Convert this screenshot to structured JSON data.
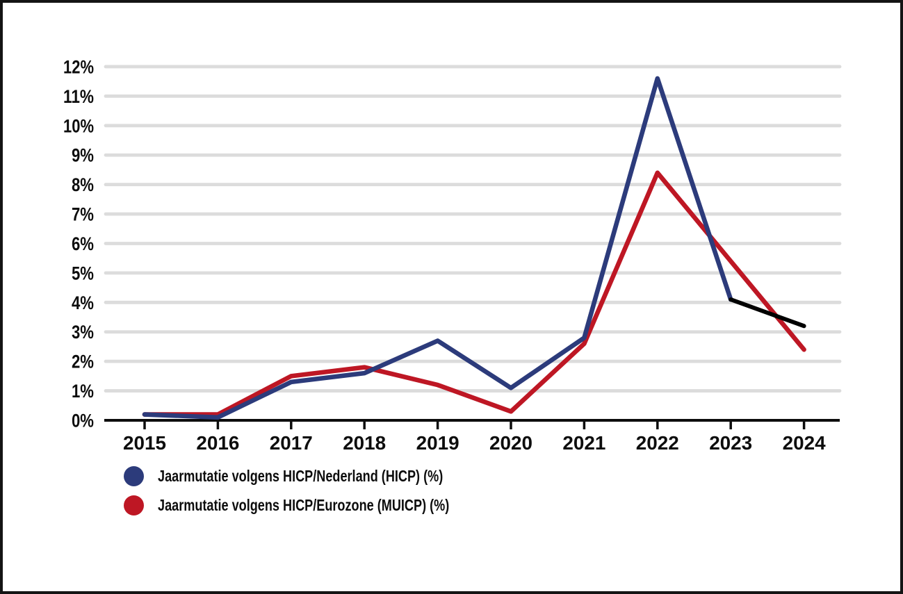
{
  "frame": {
    "background": "#ffffff",
    "border_color": "#141414"
  },
  "chart_data": {
    "type": "line",
    "title": "",
    "xlabel": "",
    "ylabel": "",
    "x": [
      "2015",
      "2016",
      "2017",
      "2018",
      "2019",
      "2020",
      "2021",
      "2022",
      "2023",
      "2024"
    ],
    "y_ticks": [
      "0%",
      "1%",
      "2%",
      "3%",
      "4%",
      "5%",
      "6%",
      "7%",
      "8%",
      "9%",
      "10%",
      "11%",
      "12%"
    ],
    "ylim": [
      0,
      12
    ],
    "grid": true,
    "gridline_color": "#dcdcdc",
    "axis_color": "#0d0d0d",
    "label_color": "#0d0d0d",
    "legend_position": "bottom-left",
    "series": [
      {
        "name": "Jaarmutatie volgens HICP/Nederland (HICP) (%)",
        "color": "#2C3B7B",
        "values": [
          0.2,
          0.1,
          1.3,
          1.6,
          2.7,
          1.1,
          2.8,
          11.6,
          4.1,
          3.2
        ],
        "last_segment_color": "#000000"
      },
      {
        "name": "Jaarmutatie volgens HICP/Eurozone (MUICP) (%)",
        "color": "#BE1724",
        "values": [
          0.2,
          0.2,
          1.5,
          1.8,
          1.2,
          0.3,
          2.6,
          8.4,
          5.4,
          2.4
        ]
      }
    ]
  }
}
